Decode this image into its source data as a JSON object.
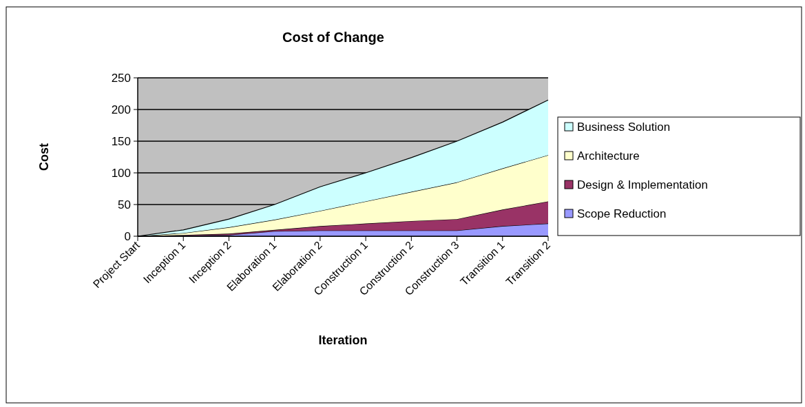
{
  "chart_data": {
    "type": "area",
    "stacked": true,
    "title": "Cost of Change",
    "xlabel": "Iteration",
    "ylabel": "Cost",
    "categories": [
      "Project Start",
      "Inception 1",
      "Inception 2",
      "Elaboration 1",
      "Elaboration 2",
      "Construction 1",
      "Construction 2",
      "Construction 3",
      "Transition 1",
      "Transition 2"
    ],
    "series": [
      {
        "name": "Scope Reduction",
        "color": "#9999ff",
        "values": [
          0,
          1,
          2,
          8,
          9,
          9,
          9,
          9,
          16,
          20
        ]
      },
      {
        "name": "Design & Implementation",
        "color": "#993366",
        "values": [
          0,
          1,
          2,
          2,
          7,
          11,
          15,
          18,
          26,
          35
        ]
      },
      {
        "name": "Architecture",
        "color": "#ffffcc",
        "values": [
          0,
          3,
          10,
          16,
          24,
          35,
          46,
          58,
          65,
          73
        ]
      },
      {
        "name": "Business Solution",
        "color": "#ccffff",
        "values": [
          0,
          5,
          13,
          24,
          38,
          45,
          54,
          65,
          73,
          87
        ]
      }
    ],
    "ylim": [
      0,
      250
    ],
    "yticks": [
      0,
      50,
      100,
      150,
      200,
      250
    ],
    "grid": "y",
    "legend": "right"
  }
}
